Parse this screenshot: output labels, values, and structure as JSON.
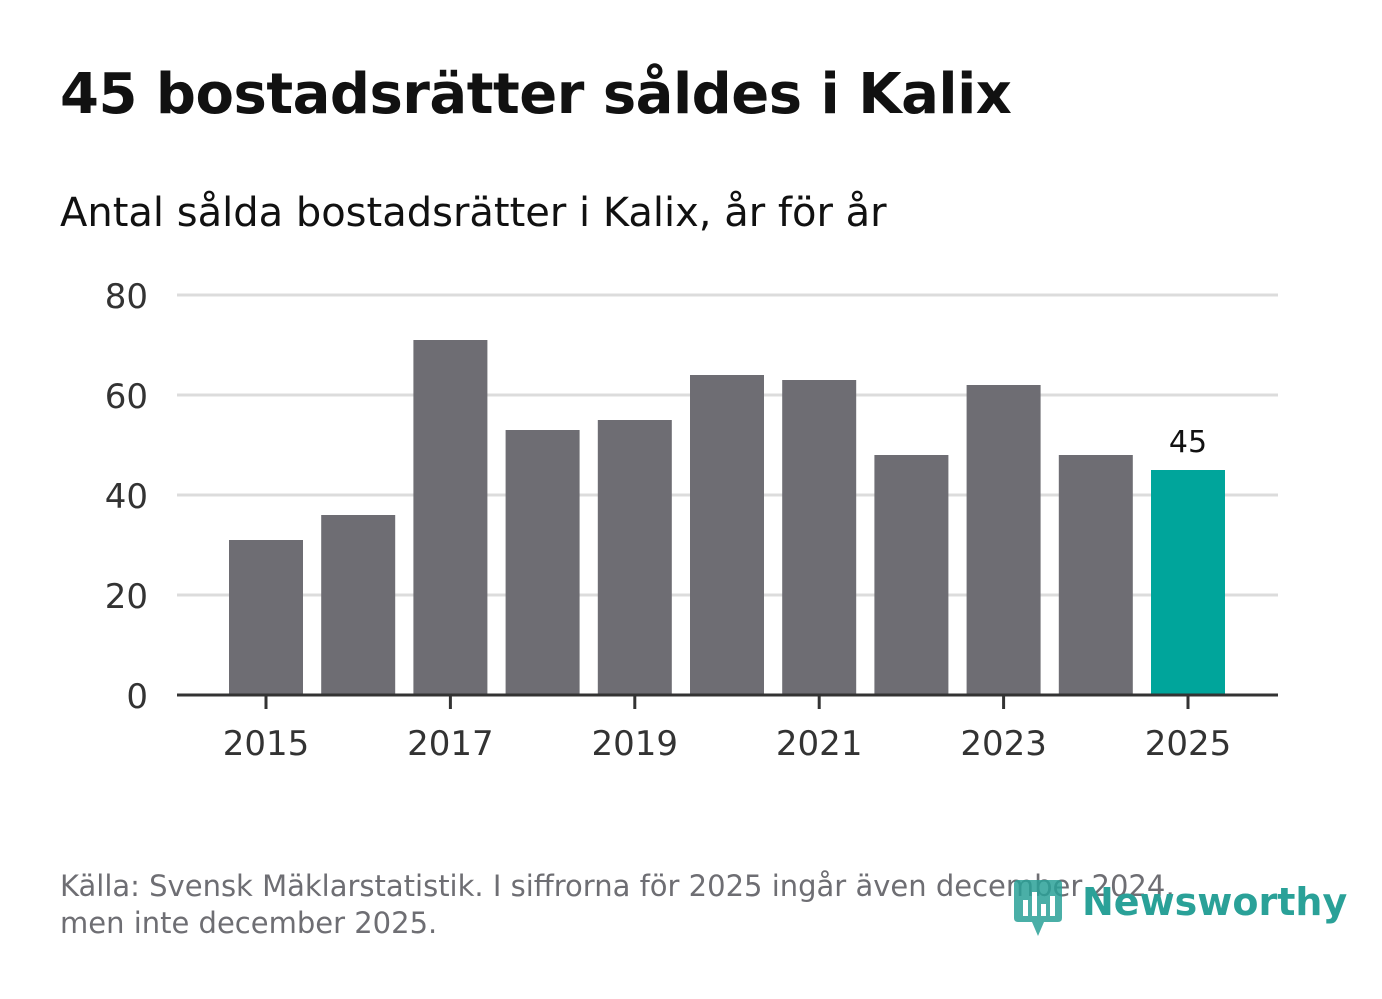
{
  "header": {
    "title": "45 bostadsrätter såldes i Kalix",
    "subtitle": "Antal sålda bostadsrätter i Kalix, år för år"
  },
  "footer": {
    "source_line1": "Källa: Svensk Mäklarstatistik. I siffrorna för 2025 ingår även december 2024,",
    "source_line2": "men inte december 2025."
  },
  "brand": {
    "name": "Newsworthy",
    "icon": "newsworthy-logo-icon",
    "color": "#2aa198"
  },
  "chart_data": {
    "type": "bar",
    "title": "45 bostadsrätter såldes i Kalix",
    "subtitle": "Antal sålda bostadsrätter i Kalix, år för år",
    "xlabel": "",
    "ylabel": "",
    "categories": [
      "2015",
      "2016",
      "2017",
      "2018",
      "2019",
      "2020",
      "2021",
      "2022",
      "2023",
      "2024",
      "2025"
    ],
    "values": [
      31,
      36,
      71,
      53,
      55,
      64,
      63,
      48,
      62,
      48,
      45
    ],
    "x_tick_labels": [
      "2015",
      "2017",
      "2019",
      "2021",
      "2023",
      "2025"
    ],
    "y_ticks": [
      0,
      20,
      40,
      60,
      80
    ],
    "ylim": [
      0,
      80
    ],
    "grid": true,
    "highlight": {
      "category": "2025",
      "label": "45"
    },
    "colors": {
      "bar": "#6e6d73",
      "highlight": "#00a59b",
      "grid": "#dcdcdc",
      "axis": "#333333"
    }
  }
}
